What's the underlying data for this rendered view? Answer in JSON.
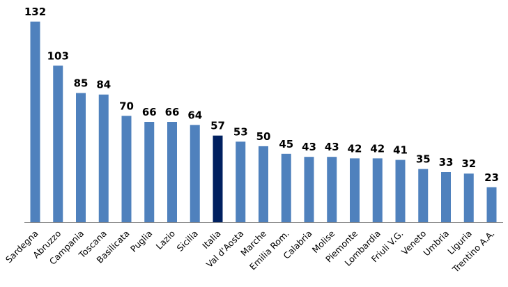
{
  "chart_data": {
    "type": "bar",
    "title": "",
    "xlabel": "",
    "ylabel": "",
    "ylim": [
      0,
      132
    ],
    "grid": false,
    "legend": "none",
    "categories": [
      "Sardegna",
      "Abruzzo",
      "Campania",
      "Toscana",
      "Basilicata",
      "Puglia",
      "Lazio",
      "Sicilia",
      "Italia",
      "Val d'Aosta",
      "Marche",
      "Emilia Rom.",
      "Calabria",
      "Molise",
      "Piemonte",
      "Lombardia",
      "Friuli V.G.",
      "Veneto",
      "Umbria",
      "Liguria",
      "Trentino A.A."
    ],
    "values": [
      132,
      103,
      85,
      84,
      70,
      66,
      66,
      64,
      57,
      53,
      50,
      45,
      43,
      43,
      42,
      42,
      41,
      35,
      33,
      32,
      23
    ],
    "colors": {
      "default": "#4F81BD",
      "highlight": "#002060",
      "highlight_category": "Italia"
    }
  }
}
